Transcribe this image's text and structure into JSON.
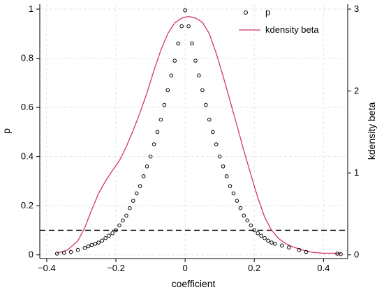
{
  "chart_data": {
    "type": "scatter",
    "title": "",
    "xlabel": "coefficient",
    "ylabel": "p",
    "y2label": "kdensity beta",
    "xlim": [
      -0.42,
      0.47
    ],
    "ylim": [
      -0.015,
      1.02
    ],
    "y2lim": [
      -0.045,
      3.06
    ],
    "xticks": [
      -0.4,
      -0.2,
      0,
      0.2,
      0.4
    ],
    "xtick_labels": [
      "−0.4",
      "−0.2",
      "0",
      "0.2",
      "0.4"
    ],
    "yticks": [
      0,
      0.2,
      0.4,
      0.6,
      0.8,
      1
    ],
    "ytick_labels": [
      "0",
      "0.2",
      "0.4",
      "0.6",
      "0.8",
      "1"
    ],
    "y2ticks": [
      0,
      1,
      2,
      3
    ],
    "y2tick_labels": [
      "0",
      "1",
      "2",
      "3"
    ],
    "grid": true,
    "legend_position": "top-right",
    "reference_line": {
      "y": 0.1,
      "style": "dashed",
      "color": "#000000"
    },
    "series": [
      {
        "name": "p",
        "kind": "scatter",
        "marker": "hollow-circle",
        "color": "#000000",
        "points": [
          [
            -0.37,
            0.005
          ],
          [
            -0.35,
            0.008
          ],
          [
            -0.33,
            0.012
          ],
          [
            -0.31,
            0.02
          ],
          [
            -0.29,
            0.028
          ],
          [
            -0.28,
            0.035
          ],
          [
            -0.27,
            0.04
          ],
          [
            -0.26,
            0.045
          ],
          [
            -0.25,
            0.05
          ],
          [
            -0.24,
            0.058
          ],
          [
            -0.23,
            0.068
          ],
          [
            -0.22,
            0.078
          ],
          [
            -0.21,
            0.088
          ],
          [
            -0.2,
            0.1
          ],
          [
            -0.19,
            0.12
          ],
          [
            -0.18,
            0.14
          ],
          [
            -0.17,
            0.16
          ],
          [
            -0.16,
            0.19
          ],
          [
            -0.15,
            0.22
          ],
          [
            -0.14,
            0.25
          ],
          [
            -0.13,
            0.28
          ],
          [
            -0.12,
            0.32
          ],
          [
            -0.11,
            0.36
          ],
          [
            -0.1,
            0.4
          ],
          [
            -0.09,
            0.45
          ],
          [
            -0.08,
            0.5
          ],
          [
            -0.07,
            0.55
          ],
          [
            -0.06,
            0.61
          ],
          [
            -0.05,
            0.67
          ],
          [
            -0.04,
            0.73
          ],
          [
            -0.03,
            0.79
          ],
          [
            -0.02,
            0.86
          ],
          [
            -0.01,
            0.93
          ],
          [
            0,
            0.995
          ],
          [
            0.01,
            0.93
          ],
          [
            0.02,
            0.86
          ],
          [
            0.03,
            0.79
          ],
          [
            0.04,
            0.73
          ],
          [
            0.05,
            0.67
          ],
          [
            0.06,
            0.61
          ],
          [
            0.07,
            0.55
          ],
          [
            0.08,
            0.5
          ],
          [
            0.09,
            0.45
          ],
          [
            0.1,
            0.4
          ],
          [
            0.11,
            0.36
          ],
          [
            0.12,
            0.32
          ],
          [
            0.13,
            0.28
          ],
          [
            0.14,
            0.25
          ],
          [
            0.15,
            0.22
          ],
          [
            0.16,
            0.19
          ],
          [
            0.17,
            0.16
          ],
          [
            0.18,
            0.14
          ],
          [
            0.19,
            0.12
          ],
          [
            0.2,
            0.1
          ],
          [
            0.21,
            0.088
          ],
          [
            0.22,
            0.078
          ],
          [
            0.23,
            0.068
          ],
          [
            0.24,
            0.058
          ],
          [
            0.25,
            0.05
          ],
          [
            0.26,
            0.045
          ],
          [
            0.28,
            0.038
          ],
          [
            0.3,
            0.03
          ],
          [
            0.33,
            0.02
          ],
          [
            0.35,
            0.012
          ],
          [
            0.44,
            0.005
          ],
          [
            0.45,
            0.003
          ]
        ]
      },
      {
        "name": "kdensity beta",
        "kind": "line",
        "axis": "right",
        "color": "#d6336c",
        "points": [
          [
            -0.37,
            0.02
          ],
          [
            -0.34,
            0.06
          ],
          [
            -0.31,
            0.17
          ],
          [
            -0.29,
            0.33
          ],
          [
            -0.27,
            0.55
          ],
          [
            -0.25,
            0.75
          ],
          [
            -0.23,
            0.9
          ],
          [
            -0.21,
            1.03
          ],
          [
            -0.19,
            1.15
          ],
          [
            -0.17,
            1.32
          ],
          [
            -0.15,
            1.52
          ],
          [
            -0.13,
            1.74
          ],
          [
            -0.11,
            1.98
          ],
          [
            -0.09,
            2.25
          ],
          [
            -0.07,
            2.5
          ],
          [
            -0.05,
            2.7
          ],
          [
            -0.03,
            2.83
          ],
          [
            -0.01,
            2.89
          ],
          [
            0.01,
            2.91
          ],
          [
            0.03,
            2.89
          ],
          [
            0.05,
            2.84
          ],
          [
            0.07,
            2.7
          ],
          [
            0.09,
            2.46
          ],
          [
            0.11,
            2.18
          ],
          [
            0.13,
            1.88
          ],
          [
            0.15,
            1.58
          ],
          [
            0.17,
            1.27
          ],
          [
            0.19,
            0.98
          ],
          [
            0.21,
            0.7
          ],
          [
            0.23,
            0.46
          ],
          [
            0.25,
            0.3
          ],
          [
            0.27,
            0.2
          ],
          [
            0.29,
            0.14
          ],
          [
            0.31,
            0.1
          ],
          [
            0.34,
            0.06
          ],
          [
            0.37,
            0.03
          ],
          [
            0.4,
            0.02
          ],
          [
            0.43,
            0.02
          ],
          [
            0.45,
            0.015
          ]
        ]
      }
    ]
  }
}
